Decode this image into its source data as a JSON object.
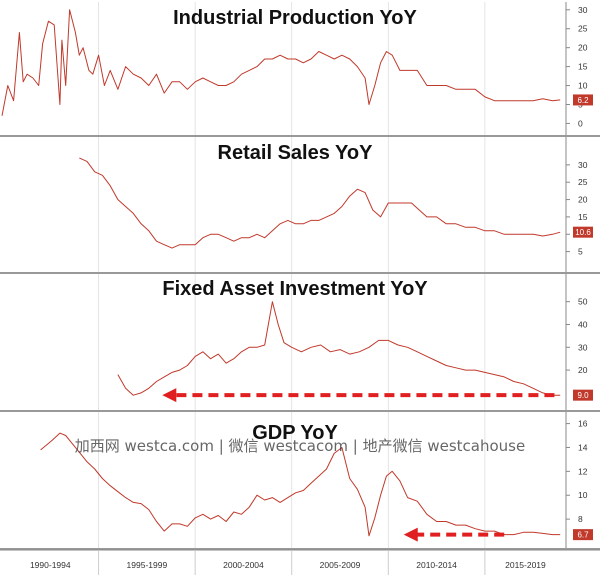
{
  "watermark": "加西网 westca.com | 微信 westcacom | 地产微信 westcahouse",
  "chart_data": [
    {
      "type": "line",
      "title": "Industrial Production YoY",
      "yticks": [
        0,
        5,
        10,
        15,
        20,
        25,
        30
      ],
      "ylim": [
        -2,
        31
      ],
      "last_label": "6.2",
      "line_color": "#c0392b",
      "series": [
        {
          "x": [
            1990.0,
            1990.3,
            1990.6,
            1990.9,
            1991.1,
            1991.3,
            1991.6,
            1991.9,
            1992.1,
            1992.4,
            1992.7,
            1993.0,
            1993.1,
            1993.3,
            1993.5,
            1993.8,
            1994.0,
            1994.2,
            1994.5,
            1994.7,
            1995.0,
            1995.3,
            1995.6,
            1996.0,
            1996.4,
            1996.8,
            1997.2,
            1997.6,
            1998.0,
            1998.4,
            1998.8,
            1999.2,
            1999.6,
            2000.0,
            2000.4,
            2000.8,
            2001.2,
            2001.6,
            2002.0,
            2002.4,
            2002.8,
            2003.2,
            2003.6,
            2004.0,
            2004.4,
            2004.8,
            2005.2,
            2005.6,
            2006.0,
            2006.4,
            2006.8,
            2007.2,
            2007.6,
            2008.0,
            2008.4,
            2008.8,
            2009.0,
            2009.3,
            2009.6,
            2009.9,
            2010.2,
            2010.6,
            2011.0,
            2011.5,
            2012.0,
            2012.5,
            2013.0,
            2013.5,
            2014.0,
            2014.5,
            2015.0,
            2015.5,
            2016.0,
            2016.5,
            2017.0,
            2017.5,
            2018.0,
            2018.5,
            2018.9
          ],
          "values": [
            2,
            10,
            6,
            24,
            11,
            13,
            12,
            10,
            21,
            27,
            26,
            5,
            22,
            10,
            30,
            24,
            18,
            20,
            14,
            13,
            18,
            10,
            14,
            9,
            15,
            13,
            12,
            10,
            13,
            8,
            11,
            11,
            9,
            11,
            12,
            11,
            10,
            10,
            11,
            13,
            14,
            15,
            17,
            17,
            18,
            17,
            17,
            16,
            17,
            19,
            18,
            17,
            18,
            17,
            15,
            12,
            5,
            10,
            16,
            19,
            18,
            14,
            14,
            14,
            10,
            10,
            10,
            9,
            9,
            9,
            7,
            6,
            6,
            6,
            6,
            6,
            6.5,
            6,
            6.2
          ]
        }
      ]
    },
    {
      "type": "line",
      "title": "Retail Sales YoY",
      "yticks": [
        5,
        10,
        15,
        20,
        25,
        30
      ],
      "ylim": [
        2,
        34
      ],
      "last_label": "10.6",
      "line_color": "#c0392b",
      "series": [
        {
          "x": [
            1994.0,
            1994.4,
            1994.8,
            1995.2,
            1995.6,
            1996.0,
            1996.4,
            1996.8,
            1997.2,
            1997.6,
            1998.0,
            1998.4,
            1998.8,
            1999.2,
            1999.6,
            2000.0,
            2000.4,
            2000.8,
            2001.2,
            2001.6,
            2002.0,
            2002.4,
            2002.8,
            2003.2,
            2003.6,
            2004.0,
            2004.4,
            2004.8,
            2005.2,
            2005.6,
            2006.0,
            2006.4,
            2006.8,
            2007.2,
            2007.6,
            2008.0,
            2008.4,
            2008.8,
            2009.2,
            2009.6,
            2010.0,
            2010.4,
            2010.8,
            2011.2,
            2011.6,
            2012.0,
            2012.5,
            2013.0,
            2013.5,
            2014.0,
            2014.5,
            2015.0,
            2015.5,
            2016.0,
            2016.5,
            2017.0,
            2017.5,
            2018.0,
            2018.5,
            2018.9
          ],
          "values": [
            32,
            31,
            28,
            27,
            24,
            20,
            18,
            16,
            13,
            11,
            8,
            7,
            6,
            7,
            7,
            7,
            9,
            10,
            10,
            9,
            8,
            9,
            9,
            10,
            9,
            11,
            13,
            14,
            13,
            13,
            14,
            14,
            15,
            16,
            18,
            21,
            23,
            22,
            17,
            15,
            19,
            19,
            19,
            19,
            17,
            15,
            15,
            13,
            13,
            12,
            12,
            11,
            11,
            10,
            10,
            10,
            10,
            9.5,
            10,
            10.6
          ]
        }
      ]
    },
    {
      "type": "line",
      "title": "Fixed Asset Investment YoY",
      "yticks": [
        9.0,
        20,
        30,
        40,
        50
      ],
      "ylim": [
        6,
        56
      ],
      "last_label": "9.0",
      "line_color": "#c0392b",
      "series": [
        {
          "x": [
            1996.0,
            1996.4,
            1996.8,
            1997.2,
            1997.6,
            1998.0,
            1998.4,
            1998.8,
            1999.2,
            1999.6,
            2000.0,
            2000.4,
            2000.8,
            2001.2,
            2001.6,
            2002.0,
            2002.4,
            2002.8,
            2003.2,
            2003.6,
            2004.0,
            2004.3,
            2004.6,
            2005.0,
            2005.5,
            2006.0,
            2006.5,
            2007.0,
            2007.5,
            2008.0,
            2008.5,
            2009.0,
            2009.5,
            2010.0,
            2010.5,
            2011.0,
            2011.5,
            2012.0,
            2012.5,
            2013.0,
            2013.5,
            2014.0,
            2014.5,
            2015.0,
            2015.5,
            2016.0,
            2016.5,
            2017.0,
            2017.5,
            2018.0,
            2018.5,
            2018.9
          ],
          "values": [
            18,
            12,
            9,
            10,
            12,
            15,
            17,
            19,
            20,
            22,
            26,
            28,
            25,
            27,
            23,
            25,
            28,
            30,
            30,
            31,
            50,
            40,
            32,
            30,
            28,
            30,
            31,
            28,
            29,
            27,
            28,
            30,
            33,
            33,
            31,
            30,
            28,
            26,
            24,
            22,
            21,
            20,
            20,
            19,
            18,
            17,
            15,
            14,
            12,
            10,
            9,
            9.0
          ]
        }
      ]
    },
    {
      "type": "line",
      "title": "GDP YoY",
      "yticks": [
        6.7,
        8.0,
        10.0,
        12.0,
        14.0,
        16.0
      ],
      "ylim": [
        6.0,
        16.3
      ],
      "last_label": "6.7",
      "line_color": "#c0392b",
      "series": [
        {
          "x": [
            1992.0,
            1992.3,
            1992.6,
            1993.0,
            1993.3,
            1993.6,
            1994.0,
            1994.4,
            1994.8,
            1995.2,
            1995.6,
            1996.0,
            1996.4,
            1996.8,
            1997.2,
            1997.6,
            1998.0,
            1998.4,
            1998.8,
            1999.2,
            1999.6,
            2000.0,
            2000.4,
            2000.8,
            2001.2,
            2001.6,
            2002.0,
            2002.4,
            2002.8,
            2003.2,
            2003.6,
            2004.0,
            2004.4,
            2004.8,
            2005.2,
            2005.6,
            2006.0,
            2006.4,
            2006.8,
            2007.2,
            2007.6,
            2008.0,
            2008.4,
            2008.8,
            2009.0,
            2009.3,
            2009.6,
            2009.9,
            2010.2,
            2010.6,
            2011.0,
            2011.5,
            2012.0,
            2012.5,
            2013.0,
            2013.5,
            2014.0,
            2014.5,
            2015.0,
            2015.5,
            2016.0,
            2016.5,
            2017.0,
            2017.5,
            2018.0,
            2018.5,
            2018.9
          ],
          "values": [
            13.8,
            14.2,
            14.6,
            15.2,
            15.0,
            14.4,
            13.6,
            12.8,
            12.2,
            11.4,
            10.8,
            10.3,
            9.8,
            9.4,
            9.3,
            8.8,
            7.8,
            7.0,
            7.6,
            7.6,
            7.4,
            8.1,
            8.4,
            8.0,
            8.3,
            7.8,
            8.6,
            8.4,
            9.0,
            10.0,
            9.6,
            9.8,
            9.4,
            9.8,
            10.2,
            10.4,
            11.0,
            11.6,
            12.2,
            13.5,
            14.0,
            11.4,
            10.5,
            9.0,
            6.6,
            8.1,
            10.0,
            11.6,
            12.0,
            11.2,
            9.8,
            9.5,
            8.4,
            7.8,
            7.8,
            7.5,
            7.5,
            7.2,
            7.0,
            7.0,
            6.7,
            6.7,
            6.9,
            6.9,
            6.8,
            6.7,
            6.7
          ]
        }
      ]
    }
  ],
  "x_axis": {
    "labels": [
      "1990-1994",
      "1995-1999",
      "2000-2004",
      "2005-2009",
      "2010-2014",
      "2015-2019"
    ],
    "range": [
      1990,
      2019.2
    ],
    "boundaries": [
      1995,
      2000,
      2005,
      2010,
      2015
    ]
  },
  "annotations": [
    {
      "panel": 2,
      "from_x": 2018.6,
      "to_x": 1998.3,
      "y": 9.0,
      "color": "#e02020",
      "style": "dashed-arrow"
    },
    {
      "panel": 3,
      "from_x": 2016.0,
      "to_x": 2010.8,
      "y": 6.7,
      "color": "#e02020",
      "style": "dashed-arrow"
    }
  ],
  "colors": {
    "axis": "#888888",
    "panel_separator": "#999999",
    "badge": "#c0392b"
  }
}
